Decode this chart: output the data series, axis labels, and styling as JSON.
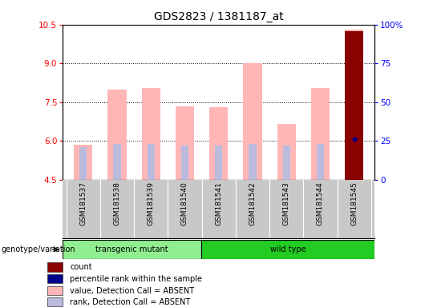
{
  "title": "GDS2823 / 1381187_at",
  "samples": [
    "GSM181537",
    "GSM181538",
    "GSM181539",
    "GSM181540",
    "GSM181541",
    "GSM181542",
    "GSM181543",
    "GSM181544",
    "GSM181545"
  ],
  "ylim": [
    4.5,
    10.5
  ],
  "y2lim": [
    0,
    100
  ],
  "yticks": [
    4.5,
    6.0,
    7.5,
    9.0,
    10.5
  ],
  "y2ticks": [
    0,
    25,
    50,
    75,
    100
  ],
  "pink_bar_values": [
    5.85,
    8.0,
    8.05,
    7.35,
    7.3,
    9.0,
    6.65,
    8.05,
    10.3
  ],
  "blue_rank_y2": [
    21,
    23,
    23,
    22,
    22,
    23,
    22,
    23,
    26
  ],
  "red_bar_value": 10.25,
  "group_label": "genotype/variation",
  "transgenic_count": 4,
  "legend_items": [
    {
      "color": "#8B0000",
      "label": "count"
    },
    {
      "color": "#00008B",
      "label": "percentile rank within the sample"
    },
    {
      "color": "#FFB6B6",
      "label": "value, Detection Call = ABSENT"
    },
    {
      "color": "#BBBBDD",
      "label": "rank, Detection Call = ABSENT"
    }
  ],
  "pink_color": "#FFB6B6",
  "blue_bar_color": "#BBBBDD",
  "red_color": "#8B0000",
  "dark_blue_color": "#00008B",
  "transgenic_bg": "#90EE90",
  "wildtype_bg": "#22CC22",
  "sample_bg": "#C8C8C8",
  "plot_bg": "#FFFFFF"
}
